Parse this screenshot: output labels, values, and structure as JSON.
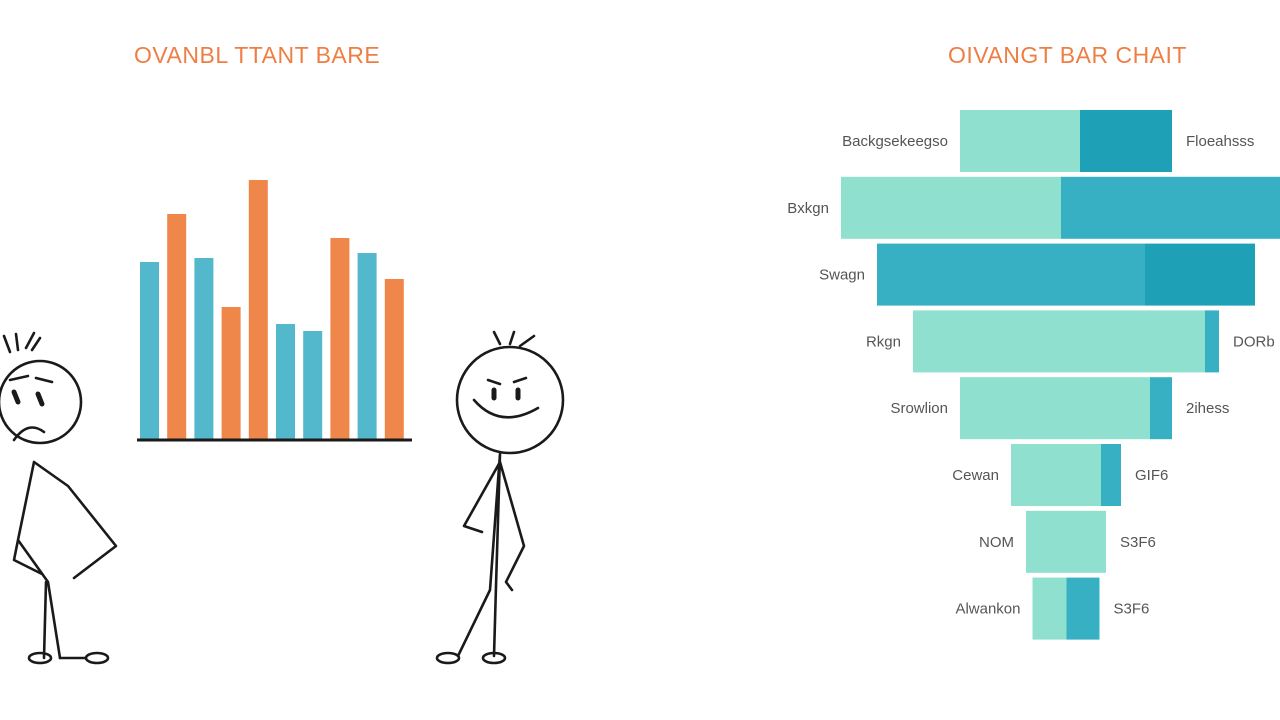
{
  "left_chart": {
    "title": "OVANBL TTANT BARE"
  },
  "right_chart": {
    "title": "OIVANGT BAR CHAIT"
  },
  "colors": {
    "orange": "#f0874a",
    "blue": "#54b8cc",
    "mint": "#8fe0cf",
    "teal": "#37b0c3",
    "dark_teal": "#1ea1b6",
    "title": "#ee7e43",
    "stick": "#1a1a1a"
  },
  "chart_data": [
    {
      "type": "bar",
      "title": "OVANBL TTANT BARE",
      "orientation": "vertical",
      "categories": [
        "",
        "",
        "",
        "",
        "",
        "",
        "",
        "",
        "",
        ""
      ],
      "values": [
        178,
        226,
        182,
        133,
        260,
        116,
        109,
        202,
        187,
        161
      ],
      "bar_colors": [
        "blue",
        "orange",
        "blue",
        "orange",
        "orange",
        "blue",
        "blue",
        "orange",
        "blue",
        "orange"
      ],
      "ylim": [
        0,
        260
      ],
      "grid": false
    },
    {
      "type": "bar",
      "title": "OIVANGT BAR CHAIT",
      "orientation": "horizontal-funnel",
      "categories": [
        "Backgsekeegso",
        "Bxkgn",
        "Swagn",
        "Rkgn",
        "Srowlion",
        "Cewan",
        "NOM",
        "Alwankon"
      ],
      "right_labels": [
        "Floeahsss",
        "",
        "",
        "DORb",
        "2ihess",
        "GIF6",
        "S3F6",
        "S3F6"
      ],
      "series": [
        {
          "values": [
            120,
            220,
            268,
            292,
            190,
            90,
            80,
            34
          ]
        },
        {
          "values": [
            92,
            230,
            110,
            14,
            22,
            20,
            0,
            33
          ]
        }
      ],
      "series_colors": [
        [
          "mint",
          "mint",
          "teal",
          "mint",
          "mint",
          "mint",
          "mint",
          "mint"
        ],
        [
          "dark_teal",
          "teal",
          "dark_teal",
          "teal",
          "teal",
          "teal",
          "teal",
          "teal"
        ]
      ],
      "grid": false
    }
  ]
}
